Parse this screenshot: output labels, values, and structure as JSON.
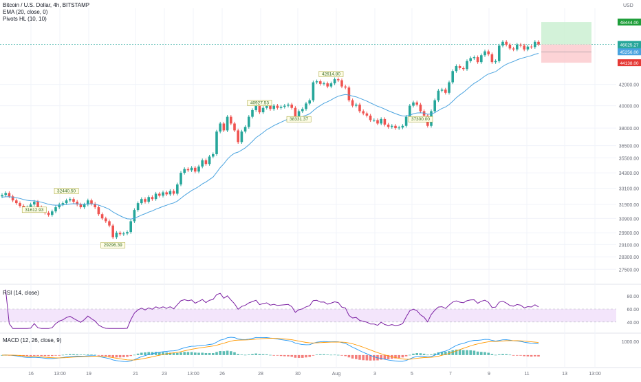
{
  "header": {
    "title": "Bitcoin / U.S. Dollar, 4h, BITSTAMP",
    "ema_label": "EMA (20, close, 0)",
    "pivots_label": "Pivots HL (10, 10)",
    "currency": "USD"
  },
  "colors": {
    "up": "#26a69a",
    "down": "#ef5350",
    "ema": "#4aa3df",
    "rsi_line": "#7b1fa2",
    "rsi_band": "#f3e5fb",
    "macd_line": "#2196f3",
    "signal_line": "#ff9800",
    "grid": "#f0f3fa",
    "text": "#131722",
    "axis_text": "#6a6d78"
  },
  "chart_data": [
    {
      "type": "candlestick",
      "title": "Bitcoin / U.S. Dollar, 4h, BITSTAMP",
      "price_axis_ticks": [
        "42000.00",
        "40000.00",
        "38000.00",
        "36500.00",
        "35500.00",
        "34300.00",
        "33100.00",
        "31900.00",
        "30900.00",
        "29900.00",
        "29100.00",
        "28300.00",
        "27500.00"
      ],
      "date_axis_ticks": [
        "16",
        "13:00",
        "19",
        "21",
        "23",
        "13:00",
        "26",
        "28",
        "30",
        "Aug",
        "3",
        "5",
        "7",
        "9",
        "11",
        "13",
        "13:00"
      ],
      "ylim": [
        26700,
        50000
      ],
      "y_scale": "log",
      "candles_close": [
        32600,
        32750,
        32500,
        32200,
        32000,
        31800,
        31500,
        31700,
        31900,
        32100,
        31700,
        31500,
        31300,
        31150,
        31400,
        31700,
        31900,
        32000,
        32200,
        32300,
        32100,
        31900,
        31700,
        31900,
        32200,
        31950,
        31700,
        31200,
        30900,
        30700,
        30400,
        29600,
        29900,
        29800,
        29850,
        29950,
        30700,
        31500,
        32000,
        32300,
        32100,
        32450,
        32300,
        32700,
        32550,
        32800,
        32650,
        32900,
        32700,
        33400,
        34300,
        34600,
        34500,
        34700,
        34400,
        34800,
        35300,
        35000,
        35600,
        35800,
        37700,
        38400,
        37800,
        39000,
        38400,
        37800,
        36800,
        37700,
        38100,
        39000,
        39600,
        40200,
        39400,
        39800,
        40100,
        39700,
        40000,
        39800,
        39900,
        40000,
        40100,
        39800,
        38900,
        39500,
        39700,
        40200,
        40500,
        42200,
        42300,
        42050,
        42100,
        41800,
        42100,
        42500,
        42400,
        41800,
        41700,
        40500,
        40000,
        40100,
        39500,
        39300,
        39100,
        38700,
        38700,
        38400,
        38800,
        38300,
        38100,
        38200,
        38000,
        38050,
        38200,
        39000,
        40000,
        40300,
        40100,
        39500,
        39100,
        38200,
        39500,
        40500,
        41400,
        41500,
        41200,
        42200,
        43300,
        43800,
        43600,
        43500,
        44300,
        44600,
        44700,
        44200,
        44900,
        45300,
        45000,
        44200,
        44300,
        45900,
        46300,
        46000,
        45600,
        45500,
        46000,
        45900,
        45500,
        45800,
        45750,
        46300,
        46025.27
      ],
      "ema_last": 45256.0,
      "last_price": "46025.27",
      "countdown": "03:15:52",
      "ema_label_value": "45256.00",
      "target_price": "48444.00",
      "stop_price": "44138.00",
      "pivots": [
        {
          "label": "32440.50",
          "type": "high"
        },
        {
          "label": "31612.93",
          "type": "low"
        },
        {
          "label": "29296.39",
          "type": "low"
        },
        {
          "label": "40927.53",
          "type": "high"
        },
        {
          "label": "38331.37",
          "type": "low"
        },
        {
          "label": "42614.80",
          "type": "high"
        },
        {
          "label": "37300.00",
          "type": "low"
        }
      ]
    },
    {
      "type": "line",
      "title": "RSI (14, close)",
      "ticks": [
        "80.00",
        "60.00",
        "40.00"
      ],
      "ylim": [
        25,
        95
      ],
      "band": [
        40,
        60
      ]
    },
    {
      "type": "histogram+line",
      "title": "MACD (12, 26, close, 9)",
      "ticks": [
        "1000.00"
      ],
      "series": [
        {
          "name": "MACD"
        },
        {
          "name": "Signal"
        },
        {
          "name": "Histogram"
        }
      ]
    }
  ]
}
